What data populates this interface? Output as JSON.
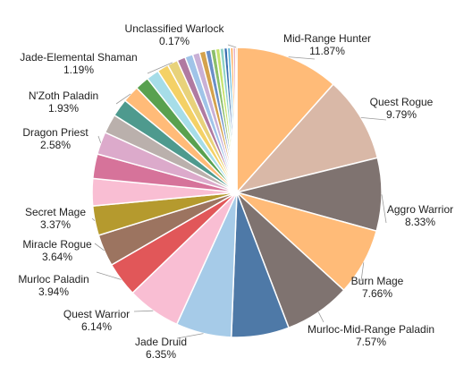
{
  "chart_data": {
    "type": "pie",
    "title": "",
    "slices": [
      {
        "label": "Mid-Range Hunter",
        "value": 11.87,
        "pct_text": "11.87%",
        "color": "#ffbb78",
        "labeled": true
      },
      {
        "label": "Quest Rogue",
        "value": 9.79,
        "pct_text": "9.79%",
        "color": "#d9b8a7",
        "labeled": true
      },
      {
        "label": "Aggro Warrior",
        "value": 8.33,
        "pct_text": "8.33%",
        "color": "#7f7370",
        "labeled": true
      },
      {
        "label": "Burn Mage",
        "value": 7.66,
        "pct_text": "7.66%",
        "color": "#ffbb78",
        "labeled": true
      },
      {
        "label": "Murloc-Mid-Range Paladin",
        "value": 7.57,
        "pct_text": "7.57%",
        "color": "#7f7370",
        "labeled": true
      },
      {
        "label": "",
        "value": 6.6,
        "color": "#4e79a7",
        "labeled": false
      },
      {
        "label": "Jade Druid",
        "value": 6.35,
        "pct_text": "6.35%",
        "color": "#a6cbe8",
        "labeled": true
      },
      {
        "label": "Quest Warrior",
        "value": 6.14,
        "pct_text": "6.14%",
        "color": "#f9bed3",
        "labeled": true
      },
      {
        "label": "Murloc Paladin",
        "value": 3.94,
        "pct_text": "3.94%",
        "color": "#e15759",
        "labeled": true
      },
      {
        "label": "Miracle Rogue",
        "value": 3.64,
        "pct_text": "3.64%",
        "color": "#9c7460",
        "labeled": true
      },
      {
        "label": "Secret Mage",
        "value": 3.37,
        "pct_text": "3.37%",
        "color": "#b59a2e",
        "labeled": true
      },
      {
        "label": "",
        "value": 3.1,
        "color": "#f9bed3",
        "labeled": false
      },
      {
        "label": "",
        "value": 2.8,
        "color": "#d6739a",
        "labeled": false
      },
      {
        "label": "Dragon Priest",
        "value": 2.58,
        "pct_text": "2.58%",
        "color": "#dcaacb",
        "labeled": true
      },
      {
        "label": "",
        "value": 2.2,
        "color": "#bab0ac",
        "labeled": false
      },
      {
        "label": "",
        "value": 2.05,
        "color": "#4e9a8e",
        "labeled": false
      },
      {
        "label": "N'Zoth Paladin",
        "value": 1.93,
        "pct_text": "1.93%",
        "color": "#ffbb78",
        "labeled": true
      },
      {
        "label": "",
        "value": 1.6,
        "color": "#59a14f",
        "labeled": false
      },
      {
        "label": "",
        "value": 1.45,
        "color": "#a6dde8",
        "labeled": false
      },
      {
        "label": "",
        "value": 1.3,
        "color": "#f4d166",
        "labeled": false
      },
      {
        "label": "Jade-Elemental Shaman",
        "value": 1.19,
        "pct_text": "1.19%",
        "color": "#e8d27a",
        "labeled": true
      },
      {
        "label": "",
        "value": 0.95,
        "color": "#b07aa1",
        "labeled": false
      },
      {
        "label": "",
        "value": 0.9,
        "color": "#a0c4e8",
        "labeled": false
      },
      {
        "label": "",
        "value": 0.8,
        "color": "#c9b0d6",
        "labeled": false
      },
      {
        "label": "",
        "value": 0.7,
        "color": "#d4a24c",
        "labeled": false
      },
      {
        "label": "",
        "value": 0.6,
        "color": "#6a8fc7",
        "labeled": false
      },
      {
        "label": "",
        "value": 0.55,
        "color": "#8cbf6a",
        "labeled": false
      },
      {
        "label": "",
        "value": 0.5,
        "color": "#c7e26e",
        "labeled": false
      },
      {
        "label": "",
        "value": 0.45,
        "color": "#8fd3c7",
        "labeled": false
      },
      {
        "label": "",
        "value": 0.4,
        "color": "#3a6fb0",
        "labeled": false
      },
      {
        "label": "",
        "value": 0.35,
        "color": "#5fb7d8",
        "labeled": false
      },
      {
        "label": "",
        "value": 0.3,
        "color": "#ff9f40",
        "labeled": false
      },
      {
        "label": "",
        "value": 0.25,
        "color": "#d37295",
        "labeled": false
      },
      {
        "label": "Unclassified Warlock",
        "value": 0.17,
        "pct_text": "0.17%",
        "color": "#f28e2b",
        "labeled": true
      }
    ],
    "start_angle_deg": 0,
    "direction": "clockwise",
    "legend": "none",
    "label_style": "outside labels with leader lines"
  }
}
